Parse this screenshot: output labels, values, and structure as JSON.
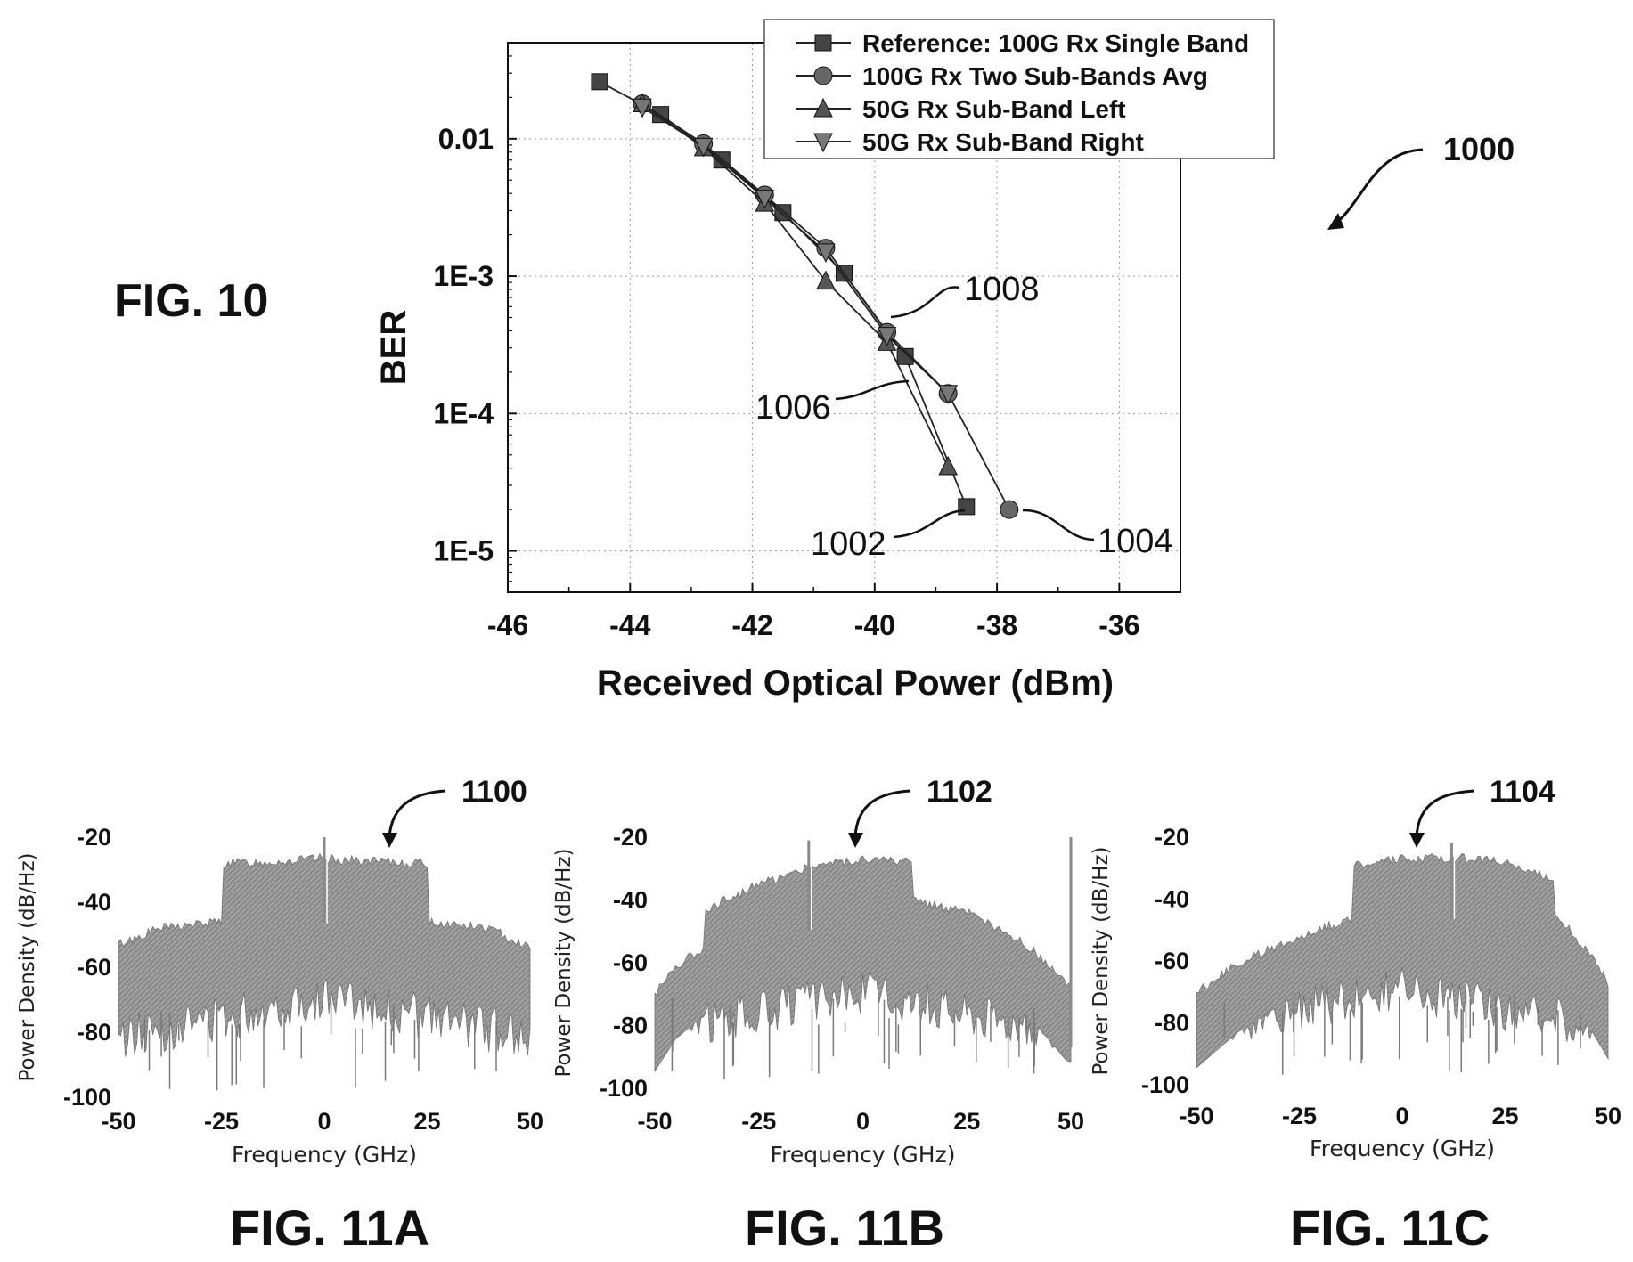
{
  "fig10": {
    "label": "FIG. 10",
    "ref_number": "1000",
    "ref_labels": {
      "r1002": "1002",
      "r1004": "1004",
      "r1006": "1006",
      "r1008": "1008"
    }
  },
  "fig11a": {
    "label": "FIG. 11A",
    "ref_number": "1100"
  },
  "fig11b": {
    "label": "FIG. 11B",
    "ref_number": "1102"
  },
  "fig11c": {
    "label": "FIG. 11C",
    "ref_number": "1104"
  },
  "chart_data": [
    {
      "type": "line",
      "title": "",
      "xlabel": "Received Optical Power (dBm)",
      "ylabel": "BER",
      "xlim": [
        -46,
        -35
      ],
      "ylim": [
        5e-06,
        0.05
      ],
      "yscale": "log",
      "grid": true,
      "legend_position": "top-right",
      "x_ticks": [
        "-46",
        "-44",
        "-42",
        "-40",
        "-38",
        "-36"
      ],
      "y_ticks": [
        "0.01",
        "1E-3",
        "1E-4",
        "1E-5"
      ],
      "series": [
        {
          "name": "Reference: 100G Rx Single Band",
          "marker": "square",
          "x": [
            -44.5,
            -43.5,
            -42.5,
            -41.5,
            -40.5,
            -39.5,
            -38.5
          ],
          "y": [
            0.026,
            0.015,
            0.007,
            0.0029,
            0.00105,
            0.00026,
            2.1e-05
          ]
        },
        {
          "name": "100G Rx Two Sub-Bands Avg",
          "marker": "circle",
          "x": [
            -43.8,
            -42.8,
            -41.8,
            -40.8,
            -39.8,
            -38.8,
            -37.8
          ],
          "y": [
            0.018,
            0.0092,
            0.0039,
            0.0016,
            0.00039,
            0.00014,
            2e-05
          ]
        },
        {
          "name": "50G Rx Sub-Band Left",
          "marker": "triangle-up",
          "x": [
            -43.8,
            -42.8,
            -41.8,
            -40.8,
            -39.8,
            -38.8
          ],
          "y": [
            0.018,
            0.0086,
            0.0034,
            0.00092,
            0.00033,
            4.1e-05
          ]
        },
        {
          "name": "50G Rx Sub-Band Right",
          "marker": "triangle-down",
          "x": [
            -43.8,
            -42.8,
            -41.8,
            -40.8,
            -39.8,
            -38.8
          ],
          "y": [
            0.017,
            0.0088,
            0.0037,
            0.0015,
            0.00037,
            0.00014
          ]
        }
      ]
    },
    {
      "type": "area",
      "title": "FIG. 11A",
      "xlabel": "Frequency (GHz)",
      "ylabel": "Power Density (dB/Hz)",
      "xlim": [
        -50,
        50
      ],
      "ylim": [
        -100,
        -20
      ],
      "x_ticks": [
        "-50",
        "-25",
        "0",
        "25",
        "50"
      ],
      "y_ticks": [
        "-20",
        "-40",
        "-60",
        "-80",
        "-100"
      ],
      "envelope": {
        "x": [
          -50,
          -40,
          -25,
          -24.9,
          -10,
          0,
          10,
          25,
          25.1,
          40,
          50
        ],
        "y": [
          -53,
          -48,
          -46,
          -28,
          -27.5,
          -26.5,
          -27.5,
          -28,
          -46,
          -48,
          -54
        ]
      },
      "spikes": [
        {
          "x": 0,
          "y": -20
        }
      ]
    },
    {
      "type": "area",
      "title": "FIG. 11B",
      "xlabel": "Frequency (GHz)",
      "ylabel": "Power Density (dB/Hz)",
      "xlim": [
        -50,
        50
      ],
      "ylim": [
        -100,
        -20
      ],
      "x_ticks": [
        "-50",
        "-25",
        "0",
        "25",
        "50"
      ],
      "y_ticks": [
        "-20",
        "-40",
        "-60",
        "-80",
        "-100"
      ],
      "envelope": {
        "x": [
          -50,
          -45,
          -38,
          -37.9,
          -25,
          -12,
          0,
          12,
          12.1,
          25,
          40,
          49
        ],
        "y": [
          -70,
          -61,
          -55,
          -43,
          -35,
          -29,
          -27,
          -28,
          -40,
          -44,
          -55,
          -67
        ]
      },
      "spikes": [
        {
          "x": -13,
          "y": -21
        },
        {
          "x": 50,
          "y": -20
        }
      ]
    },
    {
      "type": "area",
      "title": "FIG. 11C",
      "xlabel": "Frequency (GHz)",
      "ylabel": "Power Density (dB/Hz)",
      "xlim": [
        -50,
        50
      ],
      "ylim": [
        -100,
        -20
      ],
      "x_ticks": [
        "-50",
        "-25",
        "0",
        "25",
        "50"
      ],
      "y_ticks": [
        "-20",
        "-40",
        "-60",
        "-80",
        "-100"
      ],
      "envelope": {
        "x": [
          -50,
          -40,
          -25,
          -12.1,
          -12,
          0,
          12,
          25,
          37,
          37.1,
          45,
          50
        ],
        "y": [
          -70,
          -61,
          -52,
          -46,
          -29,
          -27,
          -26.5,
          -28,
          -34,
          -44,
          -57,
          -67
        ]
      },
      "spikes": [
        {
          "x": 12,
          "y": -22
        }
      ]
    }
  ]
}
